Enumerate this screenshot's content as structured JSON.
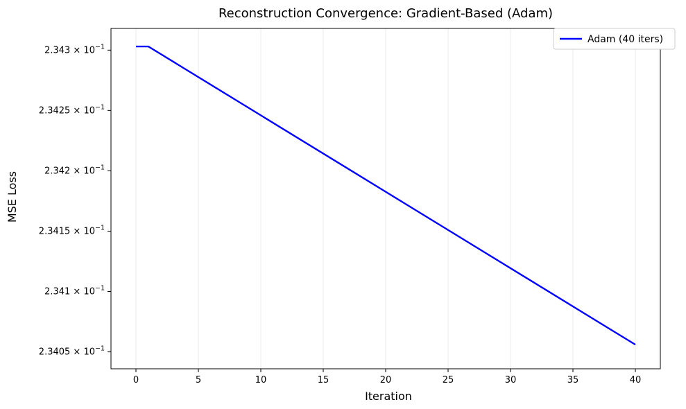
{
  "chart_data": {
    "type": "line",
    "title": "Reconstruction Convergence: Gradient-Based (Adam)",
    "xlabel": "Iteration",
    "ylabel": "MSE Loss",
    "xlim": [
      -2,
      42
    ],
    "ylim": [
      0.234036,
      0.234318
    ],
    "yscale": "log",
    "x_ticks": [
      0,
      5,
      10,
      15,
      20,
      25,
      30,
      35,
      40
    ],
    "y_ticks": [
      {
        "value": 0.23405,
        "mantissa": "2.3405"
      },
      {
        "value": 0.2341,
        "mantissa": "2.341"
      },
      {
        "value": 0.23415,
        "mantissa": "2.3415"
      },
      {
        "value": 0.2342,
        "mantissa": "2.342"
      },
      {
        "value": 0.23425,
        "mantissa": "2.3425"
      },
      {
        "value": 0.2343,
        "mantissa": "2.343"
      }
    ],
    "y_tick_base": "× 10",
    "y_tick_exponent": "−1",
    "grid": "x",
    "legend_position": "top-right",
    "series": [
      {
        "name": "Adam (40 iters)",
        "color": "#0000ff",
        "x": [
          0,
          1,
          40
        ],
        "y": [
          0.234303,
          0.234303,
          0.234056
        ]
      }
    ]
  }
}
